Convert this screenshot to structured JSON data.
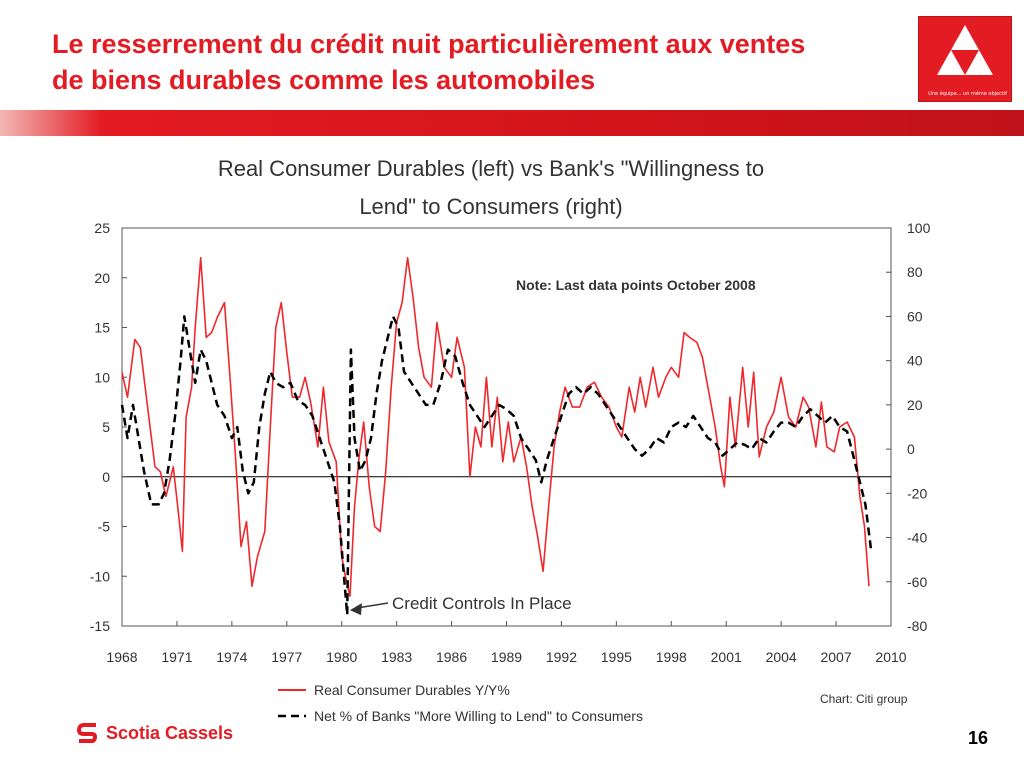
{
  "slide": {
    "title_line1": "Le resserrement du crédit nuit particulièrement aux ventes",
    "title_line2": "de biens durables comme les automobiles",
    "logo_tagline": "Une équipe... un même objectif",
    "chart_credit": "Chart: Citi group",
    "brand_name": "Scotia Cassels",
    "page_number": "16"
  },
  "colors": {
    "brand_red": "#e31b23",
    "durables_line": "#f0282c",
    "willingness_line": "#000000"
  },
  "chart_data": {
    "type": "line",
    "title_line1": "Real Consumer Durables (left) vs Bank's \"Willingness to",
    "title_line2": "Lend\" to Consumers (right)",
    "note": "Note: Last data points October 2008",
    "annotation": "Credit Controls In Place",
    "xlim": [
      1968,
      2010
    ],
    "x_ticks": [
      "1968",
      "1971",
      "1974",
      "1977",
      "1980",
      "1983",
      "1986",
      "1989",
      "1992",
      "1995",
      "1998",
      "2001",
      "2004",
      "2007",
      "2010"
    ],
    "y_left": {
      "lim": [
        -15,
        25
      ],
      "ticks": [
        "25",
        "20",
        "15",
        "10",
        "5",
        "0",
        "-5",
        "-10",
        "-15"
      ]
    },
    "y_right": {
      "lim": [
        -80,
        100
      ],
      "ticks": [
        "100",
        "80",
        "60",
        "40",
        "20",
        "0",
        "-20",
        "-40",
        "-60",
        "-80"
      ]
    },
    "zero_line": true,
    "grid": false,
    "legend_position": "bottom-left",
    "series": [
      {
        "name": "Real Consumer Durables Y/Y%",
        "axis": "left",
        "style": "solid",
        "points": [
          [
            1968.0,
            10.5
          ],
          [
            1968.3,
            8.0
          ],
          [
            1968.7,
            13.8
          ],
          [
            1969.0,
            13.0
          ],
          [
            1969.4,
            7.0
          ],
          [
            1969.8,
            1.0
          ],
          [
            1970.1,
            0.5
          ],
          [
            1970.4,
            -2.0
          ],
          [
            1970.8,
            1.0
          ],
          [
            1971.1,
            -4.0
          ],
          [
            1971.3,
            -7.5
          ],
          [
            1971.5,
            6.0
          ],
          [
            1971.8,
            9.0
          ],
          [
            1972.0,
            15.0
          ],
          [
            1972.3,
            22.0
          ],
          [
            1972.6,
            14.0
          ],
          [
            1972.9,
            14.5
          ],
          [
            1973.2,
            16.0
          ],
          [
            1973.6,
            17.5
          ],
          [
            1973.9,
            10.0
          ],
          [
            1974.2,
            2.0
          ],
          [
            1974.5,
            -7.0
          ],
          [
            1974.8,
            -4.5
          ],
          [
            1975.1,
            -11.0
          ],
          [
            1975.4,
            -8.0
          ],
          [
            1975.8,
            -5.5
          ],
          [
            1976.1,
            5.0
          ],
          [
            1976.4,
            15.0
          ],
          [
            1976.7,
            17.5
          ],
          [
            1977.0,
            12.5
          ],
          [
            1977.3,
            8.0
          ],
          [
            1977.7,
            8.0
          ],
          [
            1978.0,
            10.0
          ],
          [
            1978.3,
            7.5
          ],
          [
            1978.7,
            3.0
          ],
          [
            1979.0,
            9.0
          ],
          [
            1979.3,
            3.5
          ],
          [
            1979.7,
            1.5
          ],
          [
            1980.0,
            -8.0
          ],
          [
            1980.2,
            -10.0
          ],
          [
            1980.45,
            -12.0
          ],
          [
            1980.7,
            -3.0
          ],
          [
            1980.95,
            2.0
          ],
          [
            1981.2,
            5.5
          ],
          [
            1981.5,
            -1.0
          ],
          [
            1981.8,
            -5.0
          ],
          [
            1982.1,
            -5.5
          ],
          [
            1982.4,
            0.5
          ],
          [
            1982.7,
            9.0
          ],
          [
            1983.0,
            15.5
          ],
          [
            1983.3,
            17.5
          ],
          [
            1983.6,
            22.0
          ],
          [
            1983.9,
            18.0
          ],
          [
            1984.2,
            13.0
          ],
          [
            1984.5,
            10.0
          ],
          [
            1984.9,
            9.0
          ],
          [
            1985.2,
            15.5
          ],
          [
            1985.6,
            11.0
          ],
          [
            1986.0,
            10.0
          ],
          [
            1986.3,
            14.0
          ],
          [
            1986.7,
            11.0
          ],
          [
            1987.0,
            0.0
          ],
          [
            1987.3,
            5.0
          ],
          [
            1987.6,
            3.0
          ],
          [
            1987.9,
            10.0
          ],
          [
            1988.2,
            3.0
          ],
          [
            1988.5,
            8.0
          ],
          [
            1988.8,
            1.5
          ],
          [
            1989.1,
            5.5
          ],
          [
            1989.4,
            1.5
          ],
          [
            1989.8,
            4.0
          ],
          [
            1990.1,
            1.0
          ],
          [
            1990.4,
            -3.0
          ],
          [
            1990.7,
            -6.0
          ],
          [
            1991.0,
            -9.5
          ],
          [
            1991.3,
            -3.0
          ],
          [
            1991.6,
            3.0
          ],
          [
            1991.9,
            6.5
          ],
          [
            1992.2,
            9.0
          ],
          [
            1992.6,
            7.0
          ],
          [
            1993.0,
            7.0
          ],
          [
            1993.4,
            9.0
          ],
          [
            1993.8,
            9.5
          ],
          [
            1994.2,
            8.0
          ],
          [
            1994.6,
            7.0
          ],
          [
            1995.0,
            5.0
          ],
          [
            1995.3,
            4.0
          ],
          [
            1995.7,
            9.0
          ],
          [
            1996.0,
            6.5
          ],
          [
            1996.3,
            10.0
          ],
          [
            1996.6,
            7.0
          ],
          [
            1997.0,
            11.0
          ],
          [
            1997.3,
            8.0
          ],
          [
            1997.7,
            10.0
          ],
          [
            1998.0,
            11.0
          ],
          [
            1998.4,
            10.0
          ],
          [
            1998.7,
            14.5
          ],
          [
            1999.0,
            14.0
          ],
          [
            1999.4,
            13.5
          ],
          [
            1999.7,
            12.0
          ],
          [
            2000.0,
            9.0
          ],
          [
            2000.4,
            5.0
          ],
          [
            2000.7,
            1.0
          ],
          [
            2000.9,
            -1.0
          ],
          [
            2001.2,
            8.0
          ],
          [
            2001.5,
            3.0
          ],
          [
            2001.9,
            11.0
          ],
          [
            2002.2,
            5.0
          ],
          [
            2002.5,
            10.5
          ],
          [
            2002.8,
            2.0
          ],
          [
            2003.2,
            5.0
          ],
          [
            2003.6,
            6.5
          ],
          [
            2004.0,
            10.0
          ],
          [
            2004.4,
            6.0
          ],
          [
            2004.8,
            5.0
          ],
          [
            2005.2,
            8.0
          ],
          [
            2005.5,
            7.0
          ],
          [
            2005.9,
            3.0
          ],
          [
            2006.2,
            7.5
          ],
          [
            2006.5,
            3.0
          ],
          [
            2006.9,
            2.5
          ],
          [
            2007.2,
            5.0
          ],
          [
            2007.6,
            5.5
          ],
          [
            2008.0,
            4.0
          ],
          [
            2008.3,
            -2.0
          ],
          [
            2008.55,
            -5.0
          ],
          [
            2008.8,
            -11.0
          ]
        ]
      },
      {
        "name": "Net % of Banks \"More Willing to Lend\" to Consumers",
        "axis": "right",
        "style": "dashed",
        "points": [
          [
            1968.0,
            20.0
          ],
          [
            1968.3,
            5.0
          ],
          [
            1968.6,
            20.0
          ],
          [
            1968.9,
            5.0
          ],
          [
            1969.2,
            -10.0
          ],
          [
            1969.6,
            -25.0
          ],
          [
            1970.0,
            -25.0
          ],
          [
            1970.3,
            -20.0
          ],
          [
            1970.6,
            -5.0
          ],
          [
            1970.9,
            15.0
          ],
          [
            1971.2,
            40.0
          ],
          [
            1971.4,
            60.0
          ],
          [
            1971.7,
            45.0
          ],
          [
            1972.0,
            30.0
          ],
          [
            1972.3,
            45.0
          ],
          [
            1972.6,
            40.0
          ],
          [
            1972.9,
            30.0
          ],
          [
            1973.2,
            20.0
          ],
          [
            1973.6,
            15.0
          ],
          [
            1974.0,
            5.0
          ],
          [
            1974.3,
            10.0
          ],
          [
            1974.6,
            -10.0
          ],
          [
            1974.9,
            -20.0
          ],
          [
            1975.2,
            -15.0
          ],
          [
            1975.5,
            10.0
          ],
          [
            1975.8,
            25.0
          ],
          [
            1976.1,
            35.0
          ],
          [
            1976.4,
            30.0
          ],
          [
            1976.8,
            28.0
          ],
          [
            1977.2,
            30.0
          ],
          [
            1977.6,
            22.0
          ],
          [
            1978.0,
            20.0
          ],
          [
            1978.4,
            15.0
          ],
          [
            1978.8,
            5.0
          ],
          [
            1979.2,
            -5.0
          ],
          [
            1979.6,
            -15.0
          ],
          [
            1979.9,
            -35.0
          ],
          [
            1980.1,
            -55.0
          ],
          [
            1980.3,
            -75.0
          ],
          [
            1980.5,
            45.0
          ],
          [
            1980.7,
            5.0
          ],
          [
            1981.0,
            -10.0
          ],
          [
            1981.3,
            -5.0
          ],
          [
            1981.6,
            5.0
          ],
          [
            1981.9,
            25.0
          ],
          [
            1982.2,
            40.0
          ],
          [
            1982.5,
            50.0
          ],
          [
            1982.8,
            60.0
          ],
          [
            1983.1,
            55.0
          ],
          [
            1983.4,
            35.0
          ],
          [
            1983.8,
            30.0
          ],
          [
            1984.2,
            25.0
          ],
          [
            1984.6,
            20.0
          ],
          [
            1985.0,
            20.0
          ],
          [
            1985.4,
            30.0
          ],
          [
            1985.8,
            45.0
          ],
          [
            1986.2,
            42.0
          ],
          [
            1986.6,
            30.0
          ],
          [
            1987.0,
            20.0
          ],
          [
            1987.4,
            15.0
          ],
          [
            1987.8,
            10.0
          ],
          [
            1988.2,
            15.0
          ],
          [
            1988.6,
            20.0
          ],
          [
            1989.0,
            18.0
          ],
          [
            1989.4,
            15.0
          ],
          [
            1989.8,
            5.0
          ],
          [
            1990.2,
            0.0
          ],
          [
            1990.6,
            -5.0
          ],
          [
            1990.9,
            -15.0
          ],
          [
            1991.2,
            -5.0
          ],
          [
            1991.6,
            5.0
          ],
          [
            1992.0,
            15.0
          ],
          [
            1992.4,
            25.0
          ],
          [
            1992.8,
            28.0
          ],
          [
            1993.2,
            25.0
          ],
          [
            1993.6,
            28.0
          ],
          [
            1994.0,
            25.0
          ],
          [
            1994.4,
            20.0
          ],
          [
            1994.8,
            15.0
          ],
          [
            1995.2,
            10.0
          ],
          [
            1995.6,
            5.0
          ],
          [
            1996.0,
            0.0
          ],
          [
            1996.4,
            -3.0
          ],
          [
            1996.8,
            0.0
          ],
          [
            1997.2,
            5.0
          ],
          [
            1997.6,
            3.0
          ],
          [
            1998.0,
            10.0
          ],
          [
            1998.4,
            12.0
          ],
          [
            1998.8,
            10.0
          ],
          [
            1999.2,
            15.0
          ],
          [
            1999.6,
            10.0
          ],
          [
            2000.0,
            5.0
          ],
          [
            2000.4,
            3.0
          ],
          [
            2000.8,
            -3.0
          ],
          [
            2001.2,
            0.0
          ],
          [
            2001.6,
            3.0
          ],
          [
            2002.0,
            2.0
          ],
          [
            2002.4,
            0.0
          ],
          [
            2002.8,
            5.0
          ],
          [
            2003.2,
            3.0
          ],
          [
            2003.6,
            8.0
          ],
          [
            2004.0,
            12.0
          ],
          [
            2004.4,
            12.0
          ],
          [
            2004.8,
            10.0
          ],
          [
            2005.2,
            15.0
          ],
          [
            2005.6,
            18.0
          ],
          [
            2006.0,
            15.0
          ],
          [
            2006.4,
            12.0
          ],
          [
            2006.8,
            15.0
          ],
          [
            2007.2,
            10.0
          ],
          [
            2007.6,
            8.0
          ],
          [
            2008.0,
            -5.0
          ],
          [
            2008.3,
            -15.0
          ],
          [
            2008.6,
            -25.0
          ],
          [
            2008.9,
            -45.0
          ]
        ]
      }
    ]
  }
}
